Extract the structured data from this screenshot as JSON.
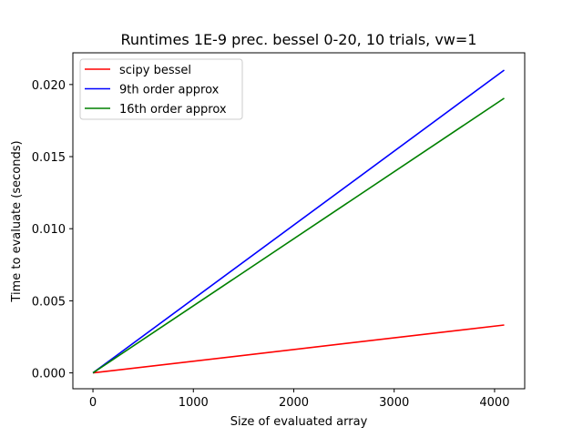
{
  "chart_data": {
    "type": "line",
    "title": "Runtimes 1E-9 prec. bessel 0-20, 10 trials, vw=1",
    "xlabel": "Size of evaluated array",
    "ylabel": "Time to evaluate (seconds)",
    "xlim": [
      -200,
      4300
    ],
    "ylim": [
      -0.0011,
      0.0222
    ],
    "xticks": [
      0,
      1000,
      2000,
      3000,
      4000
    ],
    "xtick_labels": [
      "0",
      "1000",
      "2000",
      "3000",
      "4000"
    ],
    "yticks": [
      0.0,
      0.005,
      0.01,
      0.015,
      0.02
    ],
    "ytick_labels": [
      "0.000",
      "0.005",
      "0.010",
      "0.015",
      "0.020"
    ],
    "grid": false,
    "legend_position": "top-left",
    "series": [
      {
        "name": "scipy bessel",
        "color": "#ff0000",
        "x": [
          0,
          4096
        ],
        "y": [
          0.0,
          0.00332
        ]
      },
      {
        "name": "9th order approx",
        "color": "#0000ff",
        "x": [
          0,
          4096
        ],
        "y": [
          0.0,
          0.021
        ]
      },
      {
        "name": "16th order approx",
        "color": "#008000",
        "x": [
          0,
          4096
        ],
        "y": [
          0.0,
          0.01905
        ]
      }
    ]
  }
}
